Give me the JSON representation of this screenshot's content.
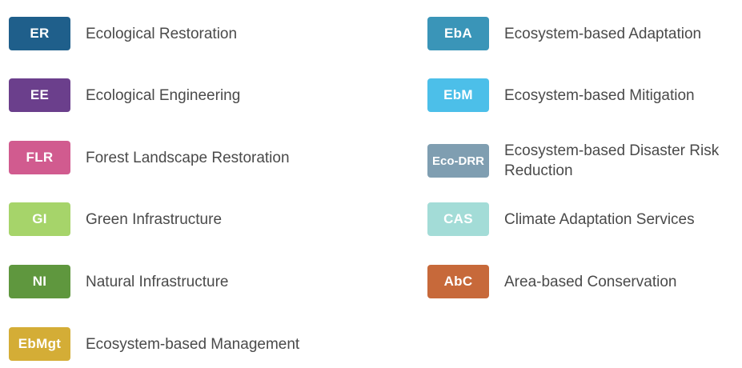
{
  "legend": {
    "columns": [
      {
        "items": [
          {
            "abbr": "ER",
            "label": "Ecological Restoration",
            "color": "#1f5f8b"
          },
          {
            "abbr": "EE",
            "label": "Ecological Engineering",
            "color": "#6b3f8c"
          },
          {
            "abbr": "FLR",
            "label": "Forest Landscape Restoration",
            "color": "#d15b8f"
          },
          {
            "abbr": "GI",
            "label": "Green Infrastructure",
            "color": "#a6d46a"
          },
          {
            "abbr": "NI",
            "label": "Natural Infrastructure",
            "color": "#5f973e"
          },
          {
            "abbr": "EbMgt",
            "label": "Ecosystem-based Management",
            "color": "#d4ad36"
          }
        ]
      },
      {
        "items": [
          {
            "abbr": "EbA",
            "label": "Ecosystem-based Adaptation",
            "color": "#3a95b8"
          },
          {
            "abbr": "EbM",
            "label": "Ecosystem-based Mitigation",
            "color": "#4cbfe9"
          },
          {
            "abbr": "Eco-DRR",
            "label": "Ecosystem-based Disaster Risk Reduction",
            "color": "#7f9eb1"
          },
          {
            "abbr": "CAS",
            "label": "Climate Adaptation Services",
            "color": "#a3dcd7"
          },
          {
            "abbr": "AbC",
            "label": "Area-based Conservation",
            "color": "#c7693a"
          }
        ]
      }
    ]
  }
}
